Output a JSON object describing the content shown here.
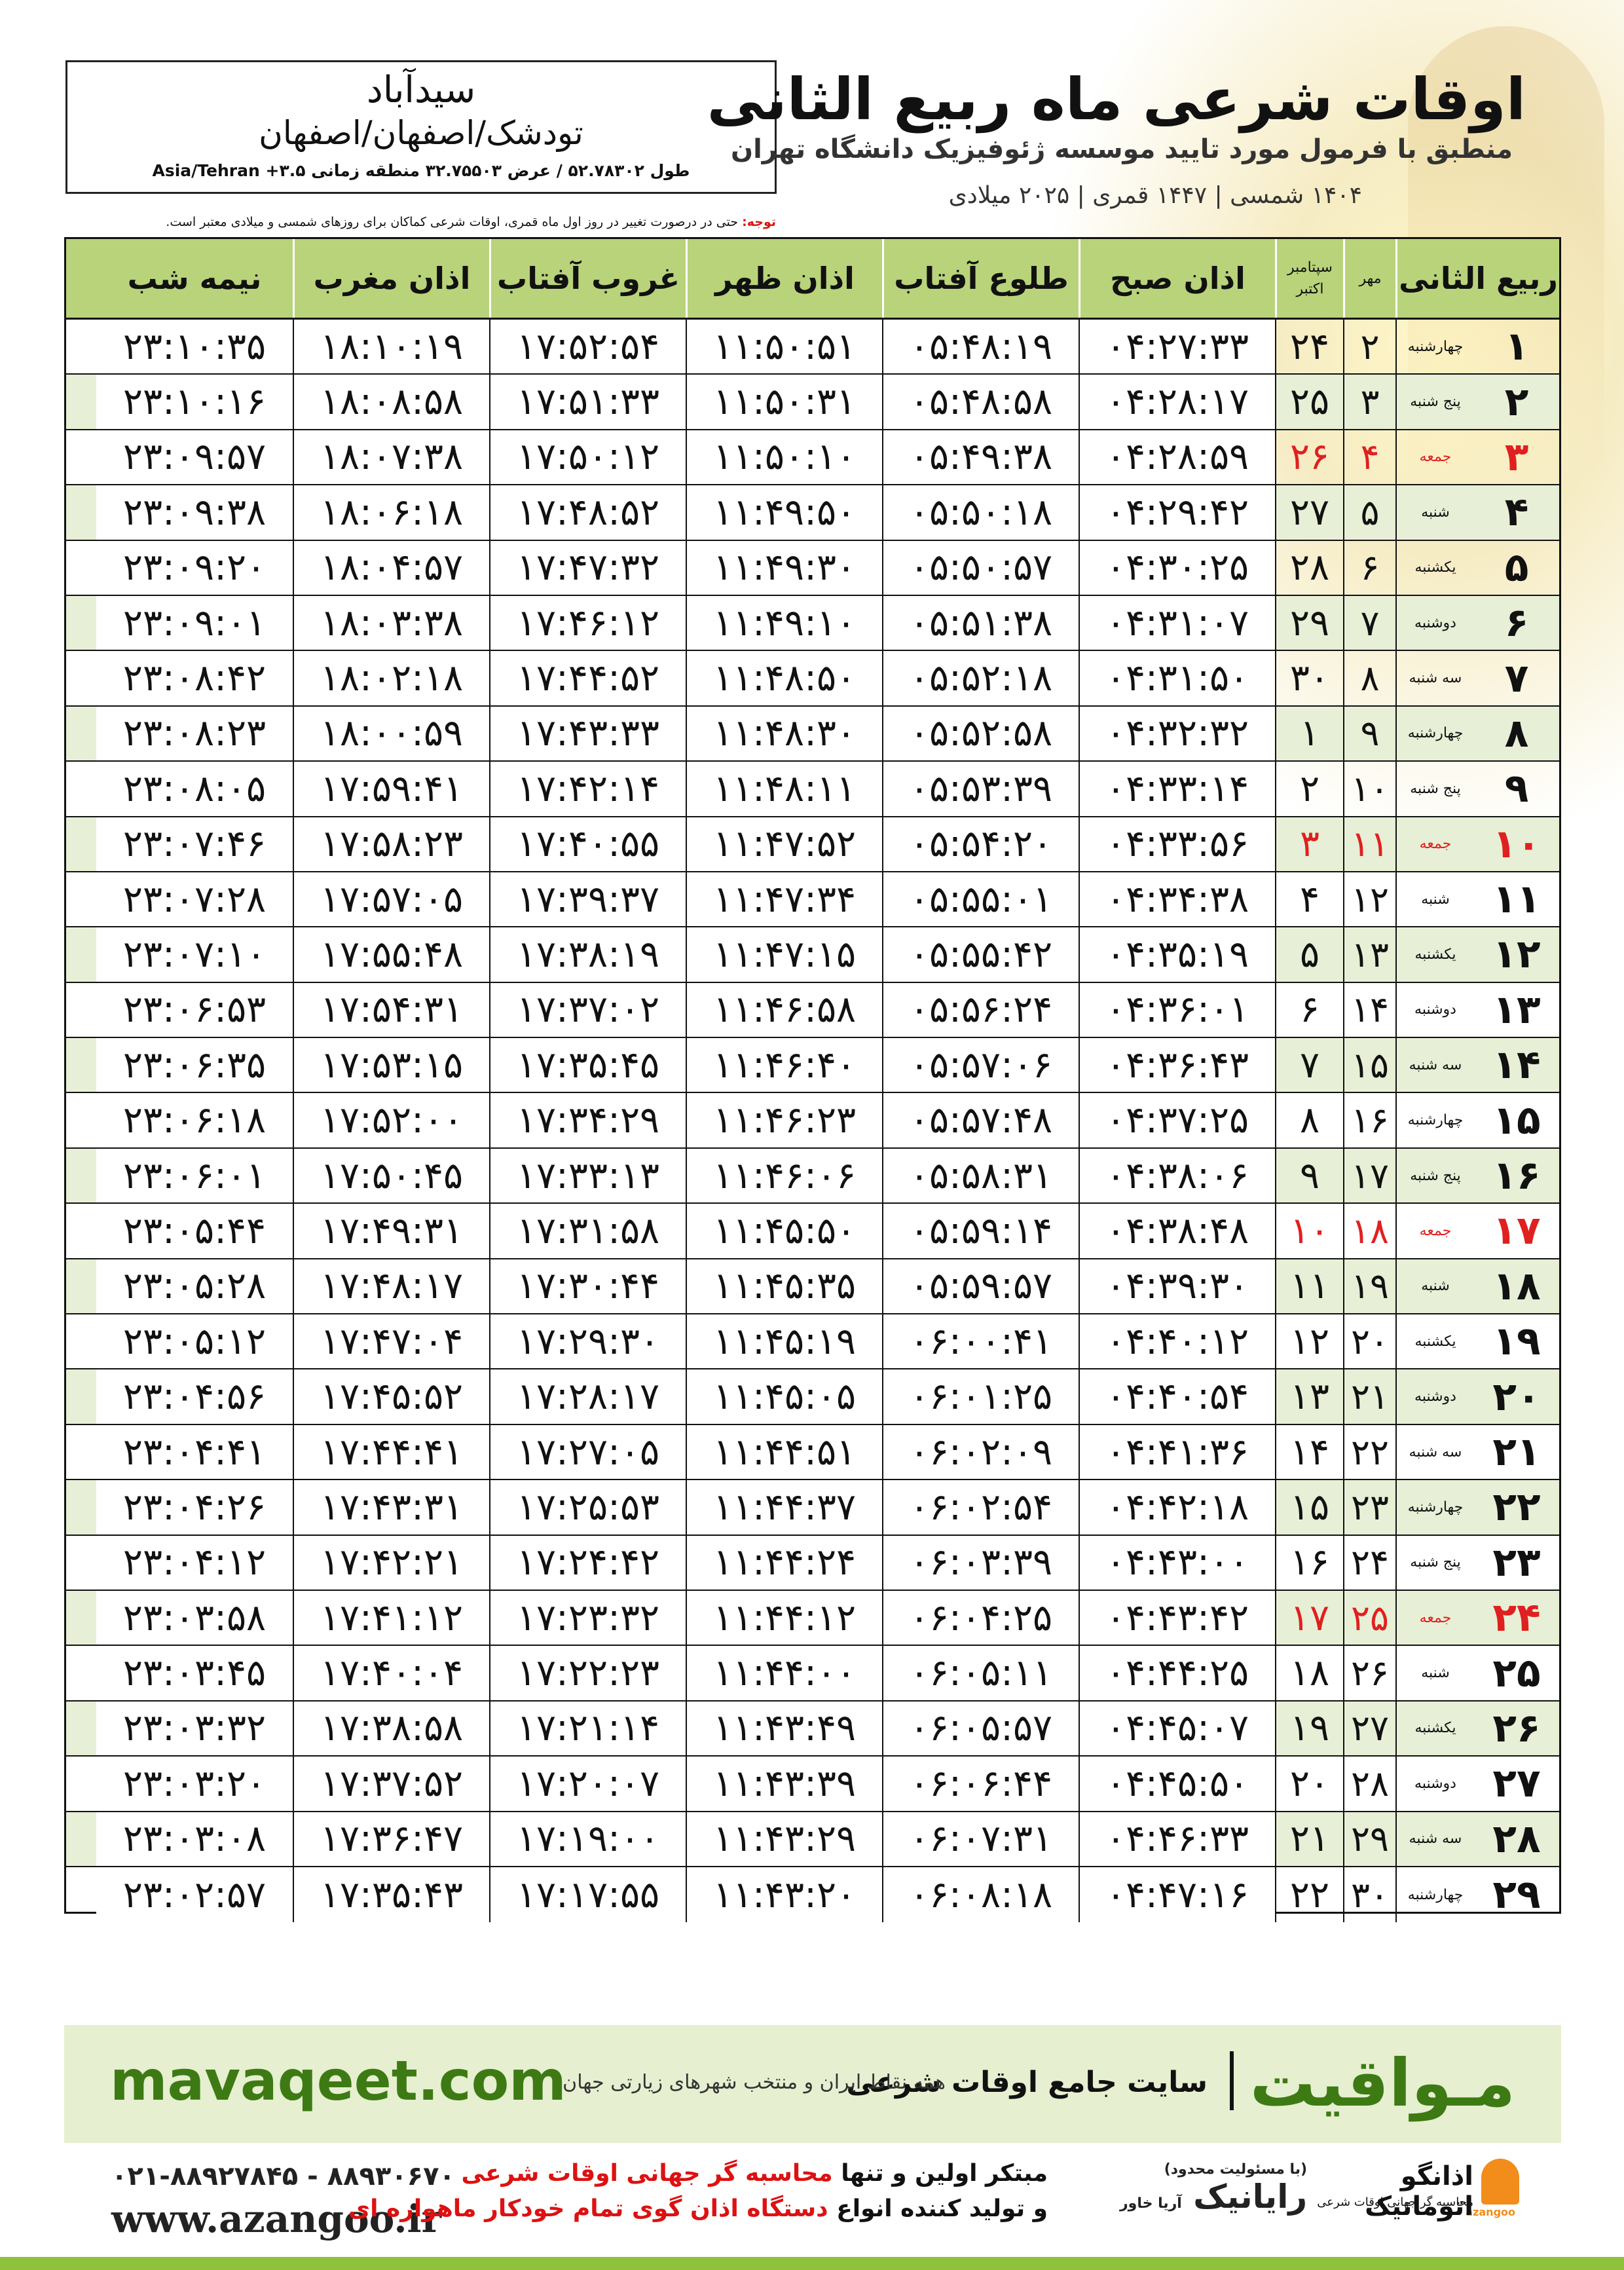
{
  "header": {
    "title": "اوقات شرعی ماه ربیع الثانی",
    "subtitle": "منطبق با فرمول مورد تایید موسسه ژئوفیزیک دانشگاه تهران",
    "dates": "۱۴۰۴ شمسی | ۱۴۴۷ قمری | ۲۰۲۵ میلادی",
    "city": "سیدآباد",
    "path": "تودشک/اصفهان/اصفهان",
    "coords": "طول ۵۲.۷۸۳۰۲ / عرض ۳۲.۷۵۵۰۳ منطقه زمانی ۳.۵+ Asia/Tehran",
    "note_label": "توجه:",
    "note_text": "حتی در درصورت تغییر در روز اول ماه قمری، اوقات شرعی کماکان برای روزهای شمسی و میلادی معتبر است."
  },
  "table": {
    "headers": {
      "month": "ربیع الثانی",
      "mehr": "مهر",
      "gregorian_top": "سپتامبر",
      "gregorian_bottom": "اکتبر",
      "fajr": "اذان صبح",
      "sunrise": "طلوع آفتاب",
      "dhuhr": "اذان ظهر",
      "sunset": "غروب آفتاب",
      "maghrib": "اذان مغرب",
      "midnight": "نیمه شب"
    },
    "rows": [
      {
        "d": "۱",
        "w": "چهارشنبه",
        "s": "۲",
        "g": "۲۴",
        "f": "۰۴:۲۷:۳۳",
        "r": "۰۵:۴۸:۱۹",
        "z": "۱۱:۵۰:۵۱",
        "ss": "۱۷:۵۲:۵۴",
        "m": "۱۸:۱۰:۱۹",
        "n": "۲۳:۱۰:۳۵"
      },
      {
        "d": "۲",
        "w": "پنج شنبه",
        "s": "۳",
        "g": "۲۵",
        "f": "۰۴:۲۸:۱۷",
        "r": "۰۵:۴۸:۵۸",
        "z": "۱۱:۵۰:۳۱",
        "ss": "۱۷:۵۱:۳۳",
        "m": "۱۸:۰۸:۵۸",
        "n": "۲۳:۱۰:۱۶"
      },
      {
        "d": "۳",
        "w": "جمعه",
        "s": "۴",
        "g": "۲۶",
        "f": "۰۴:۲۸:۵۹",
        "r": "۰۵:۴۹:۳۸",
        "z": "۱۱:۵۰:۱۰",
        "ss": "۱۷:۵۰:۱۲",
        "m": "۱۸:۰۷:۳۸",
        "n": "۲۳:۰۹:۵۷",
        "fri": true
      },
      {
        "d": "۴",
        "w": "شنبه",
        "s": "۵",
        "g": "۲۷",
        "f": "۰۴:۲۹:۴۲",
        "r": "۰۵:۵۰:۱۸",
        "z": "۱۱:۴۹:۵۰",
        "ss": "۱۷:۴۸:۵۲",
        "m": "۱۸:۰۶:۱۸",
        "n": "۲۳:۰۹:۳۸"
      },
      {
        "d": "۵",
        "w": "یکشنبه",
        "s": "۶",
        "g": "۲۸",
        "f": "۰۴:۳۰:۲۵",
        "r": "۰۵:۵۰:۵۷",
        "z": "۱۱:۴۹:۳۰",
        "ss": "۱۷:۴۷:۳۲",
        "m": "۱۸:۰۴:۵۷",
        "n": "۲۳:۰۹:۲۰"
      },
      {
        "d": "۶",
        "w": "دوشنبه",
        "s": "۷",
        "g": "۲۹",
        "f": "۰۴:۳۱:۰۷",
        "r": "۰۵:۵۱:۳۸",
        "z": "۱۱:۴۹:۱۰",
        "ss": "۱۷:۴۶:۱۲",
        "m": "۱۸:۰۳:۳۸",
        "n": "۲۳:۰۹:۰۱"
      },
      {
        "d": "۷",
        "w": "سه شنبه",
        "s": "۸",
        "g": "۳۰",
        "f": "۰۴:۳۱:۵۰",
        "r": "۰۵:۵۲:۱۸",
        "z": "۱۱:۴۸:۵۰",
        "ss": "۱۷:۴۴:۵۲",
        "m": "۱۸:۰۲:۱۸",
        "n": "۲۳:۰۸:۴۲"
      },
      {
        "d": "۸",
        "w": "چهارشنبه",
        "s": "۹",
        "g": "۱",
        "f": "۰۴:۳۲:۳۲",
        "r": "۰۵:۵۲:۵۸",
        "z": "۱۱:۴۸:۳۰",
        "ss": "۱۷:۴۳:۳۳",
        "m": "۱۸:۰۰:۵۹",
        "n": "۲۳:۰۸:۲۳"
      },
      {
        "d": "۹",
        "w": "پنج شنبه",
        "s": "۱۰",
        "g": "۲",
        "f": "۰۴:۳۳:۱۴",
        "r": "۰۵:۵۳:۳۹",
        "z": "۱۱:۴۸:۱۱",
        "ss": "۱۷:۴۲:۱۴",
        "m": "۱۷:۵۹:۴۱",
        "n": "۲۳:۰۸:۰۵"
      },
      {
        "d": "۱۰",
        "w": "جمعه",
        "s": "۱۱",
        "g": "۳",
        "f": "۰۴:۳۳:۵۶",
        "r": "۰۵:۵۴:۲۰",
        "z": "۱۱:۴۷:۵۲",
        "ss": "۱۷:۴۰:۵۵",
        "m": "۱۷:۵۸:۲۳",
        "n": "۲۳:۰۷:۴۶",
        "fri": true
      },
      {
        "d": "۱۱",
        "w": "شنبه",
        "s": "۱۲",
        "g": "۴",
        "f": "۰۴:۳۴:۳۸",
        "r": "۰۵:۵۵:۰۱",
        "z": "۱۱:۴۷:۳۴",
        "ss": "۱۷:۳۹:۳۷",
        "m": "۱۷:۵۷:۰۵",
        "n": "۲۳:۰۷:۲۸"
      },
      {
        "d": "۱۲",
        "w": "یکشنبه",
        "s": "۱۳",
        "g": "۵",
        "f": "۰۴:۳۵:۱۹",
        "r": "۰۵:۵۵:۴۲",
        "z": "۱۱:۴۷:۱۵",
        "ss": "۱۷:۳۸:۱۹",
        "m": "۱۷:۵۵:۴۸",
        "n": "۲۳:۰۷:۱۰"
      },
      {
        "d": "۱۳",
        "w": "دوشنبه",
        "s": "۱۴",
        "g": "۶",
        "f": "۰۴:۳۶:۰۱",
        "r": "۰۵:۵۶:۲۴",
        "z": "۱۱:۴۶:۵۸",
        "ss": "۱۷:۳۷:۰۲",
        "m": "۱۷:۵۴:۳۱",
        "n": "۲۳:۰۶:۵۳"
      },
      {
        "d": "۱۴",
        "w": "سه شنبه",
        "s": "۱۵",
        "g": "۷",
        "f": "۰۴:۳۶:۴۳",
        "r": "۰۵:۵۷:۰۶",
        "z": "۱۱:۴۶:۴۰",
        "ss": "۱۷:۳۵:۴۵",
        "m": "۱۷:۵۳:۱۵",
        "n": "۲۳:۰۶:۳۵"
      },
      {
        "d": "۱۵",
        "w": "چهارشنبه",
        "s": "۱۶",
        "g": "۸",
        "f": "۰۴:۳۷:۲۵",
        "r": "۰۵:۵۷:۴۸",
        "z": "۱۱:۴۶:۲۳",
        "ss": "۱۷:۳۴:۲۹",
        "m": "۱۷:۵۲:۰۰",
        "n": "۲۳:۰۶:۱۸"
      },
      {
        "d": "۱۶",
        "w": "پنج شنبه",
        "s": "۱۷",
        "g": "۹",
        "f": "۰۴:۳۸:۰۶",
        "r": "۰۵:۵۸:۳۱",
        "z": "۱۱:۴۶:۰۶",
        "ss": "۱۷:۳۳:۱۳",
        "m": "۱۷:۵۰:۴۵",
        "n": "۲۳:۰۶:۰۱"
      },
      {
        "d": "۱۷",
        "w": "جمعه",
        "s": "۱۸",
        "g": "۱۰",
        "f": "۰۴:۳۸:۴۸",
        "r": "۰۵:۵۹:۱۴",
        "z": "۱۱:۴۵:۵۰",
        "ss": "۱۷:۳۱:۵۸",
        "m": "۱۷:۴۹:۳۱",
        "n": "۲۳:۰۵:۴۴",
        "fri": true
      },
      {
        "d": "۱۸",
        "w": "شنبه",
        "s": "۱۹",
        "g": "۱۱",
        "f": "۰۴:۳۹:۳۰",
        "r": "۰۵:۵۹:۵۷",
        "z": "۱۱:۴۵:۳۵",
        "ss": "۱۷:۳۰:۴۴",
        "m": "۱۷:۴۸:۱۷",
        "n": "۲۳:۰۵:۲۸"
      },
      {
        "d": "۱۹",
        "w": "یکشنبه",
        "s": "۲۰",
        "g": "۱۲",
        "f": "۰۴:۴۰:۱۲",
        "r": "۰۶:۰۰:۴۱",
        "z": "۱۱:۴۵:۱۹",
        "ss": "۱۷:۲۹:۳۰",
        "m": "۱۷:۴۷:۰۴",
        "n": "۲۳:۰۵:۱۲"
      },
      {
        "d": "۲۰",
        "w": "دوشنبه",
        "s": "۲۱",
        "g": "۱۳",
        "f": "۰۴:۴۰:۵۴",
        "r": "۰۶:۰۱:۲۵",
        "z": "۱۱:۴۵:۰۵",
        "ss": "۱۷:۲۸:۱۷",
        "m": "۱۷:۴۵:۵۲",
        "n": "۲۳:۰۴:۵۶"
      },
      {
        "d": "۲۱",
        "w": "سه شنبه",
        "s": "۲۲",
        "g": "۱۴",
        "f": "۰۴:۴۱:۳۶",
        "r": "۰۶:۰۲:۰۹",
        "z": "۱۱:۴۴:۵۱",
        "ss": "۱۷:۲۷:۰۵",
        "m": "۱۷:۴۴:۴۱",
        "n": "۲۳:۰۴:۴۱"
      },
      {
        "d": "۲۲",
        "w": "چهارشنبه",
        "s": "۲۳",
        "g": "۱۵",
        "f": "۰۴:۴۲:۱۸",
        "r": "۰۶:۰۲:۵۴",
        "z": "۱۱:۴۴:۳۷",
        "ss": "۱۷:۲۵:۵۳",
        "m": "۱۷:۴۳:۳۱",
        "n": "۲۳:۰۴:۲۶"
      },
      {
        "d": "۲۳",
        "w": "پنج شنبه",
        "s": "۲۴",
        "g": "۱۶",
        "f": "۰۴:۴۳:۰۰",
        "r": "۰۶:۰۳:۳۹",
        "z": "۱۱:۴۴:۲۴",
        "ss": "۱۷:۲۴:۴۲",
        "m": "۱۷:۴۲:۲۱",
        "n": "۲۳:۰۴:۱۲"
      },
      {
        "d": "۲۴",
        "w": "جمعه",
        "s": "۲۵",
        "g": "۱۷",
        "f": "۰۴:۴۳:۴۲",
        "r": "۰۶:۰۴:۲۵",
        "z": "۱۱:۴۴:۱۲",
        "ss": "۱۷:۲۳:۳۲",
        "m": "۱۷:۴۱:۱۲",
        "n": "۲۳:۰۳:۵۸",
        "fri": true
      },
      {
        "d": "۲۵",
        "w": "شنبه",
        "s": "۲۶",
        "g": "۱۸",
        "f": "۰۴:۴۴:۲۵",
        "r": "۰۶:۰۵:۱۱",
        "z": "۱۱:۴۴:۰۰",
        "ss": "۱۷:۲۲:۲۳",
        "m": "۱۷:۴۰:۰۴",
        "n": "۲۳:۰۳:۴۵"
      },
      {
        "d": "۲۶",
        "w": "یکشنبه",
        "s": "۲۷",
        "g": "۱۹",
        "f": "۰۴:۴۵:۰۷",
        "r": "۰۶:۰۵:۵۷",
        "z": "۱۱:۴۳:۴۹",
        "ss": "۱۷:۲۱:۱۴",
        "m": "۱۷:۳۸:۵۸",
        "n": "۲۳:۰۳:۳۲"
      },
      {
        "d": "۲۷",
        "w": "دوشنبه",
        "s": "۲۸",
        "g": "۲۰",
        "f": "۰۴:۴۵:۵۰",
        "r": "۰۶:۰۶:۴۴",
        "z": "۱۱:۴۳:۳۹",
        "ss": "۱۷:۲۰:۰۷",
        "m": "۱۷:۳۷:۵۲",
        "n": "۲۳:۰۳:۲۰"
      },
      {
        "d": "۲۸",
        "w": "سه شنبه",
        "s": "۲۹",
        "g": "۲۱",
        "f": "۰۴:۴۶:۳۳",
        "r": "۰۶:۰۷:۳۱",
        "z": "۱۱:۴۳:۲۹",
        "ss": "۱۷:۱۹:۰۰",
        "m": "۱۷:۳۶:۴۷",
        "n": "۲۳:۰۳:۰۸"
      },
      {
        "d": "۲۹",
        "w": "چهارشنبه",
        "s": "۳۰",
        "g": "۲۲",
        "f": "۰۴:۴۷:۱۶",
        "r": "۰۶:۰۸:۱۸",
        "z": "۱۱:۴۳:۲۰",
        "ss": "۱۷:۱۷:۵۵",
        "m": "۱۷:۳۵:۴۳",
        "n": "۲۳:۰۲:۵۷"
      }
    ]
  },
  "footer": {
    "brand": "مـواقیت",
    "brand_sub": "سایت جامع اوقات شرعی",
    "brand_sub2": "همه نقاط ایران و منتخب شهرهای زیارتی جهان",
    "site": "mavaqeet.com",
    "phone": "۰۲۱-۸۸۹۲۷۸۴۵ - ۸۸۹۳۰۶۷۰",
    "web": "www.azangoo.ir",
    "about_line1_a": "مبتکر اولین و تنها ",
    "about_line1_b": "محاسبه گر جهانی اوقات شرعی",
    "about_line2_a": "و تولید کننده انواع ",
    "about_line2_b": "دستگاه اذان گوی تمام خودکار ماهواره ای",
    "logo_rayanik": "رایانیک",
    "logo_rayanik_sub": "آریا خاور",
    "logo_rayanik_top": "(با مسئولیت محدود)",
    "logo_azangoo": "اذانگو اتوماتیک",
    "logo_azangoo_sub": "محاسبه گر جهانی اوقات شرعی",
    "logo_azangoo_mark": "azangoo"
  }
}
